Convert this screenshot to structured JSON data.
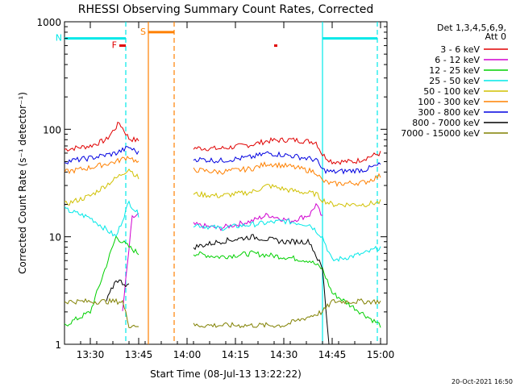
{
  "chart_data": {
    "type": "line",
    "title": "RHESSI Observing Summary Count Rates, Corrected",
    "xlabel": "Start Time (08-Jul-13 13:22:22)",
    "ylabel": "Corrected Count Rate (s⁻¹ detector⁻¹)",
    "ylog": true,
    "ylim": [
      1,
      1000
    ],
    "xlim": [
      "13:22",
      "15:02"
    ],
    "x_ticks": [
      "13:30",
      "13:45",
      "14:00",
      "14:15",
      "14:30",
      "14:45",
      "15:00"
    ],
    "y_ticks": [
      "1",
      "10",
      "100",
      "1000"
    ],
    "legend_placement": "right",
    "legend_header": [
      "Det 1,3,4,5,6,9,",
      "Att 0"
    ],
    "series": [
      {
        "name": "3 - 6 keV",
        "color": "#e00000",
        "x": [
          "13:22",
          "13:30",
          "13:35",
          "13:39",
          "13:42",
          "13:45",
          "13:52",
          "14:02",
          "14:10",
          "14:20",
          "14:25",
          "14:32",
          "14:40",
          "14:42",
          "14:45",
          "14:52",
          "15:00"
        ],
        "values": [
          65,
          70,
          80,
          115,
          82,
          78,
          72,
          67,
          66,
          72,
          78,
          80,
          76,
          58,
          50,
          50,
          60
        ]
      },
      {
        "name": "6 - 12 keV",
        "color": "#d000d0",
        "x": [
          "13:22",
          "13:40",
          "13:43",
          "13:45",
          "13:52",
          "14:02",
          "14:10",
          "14:20",
          "14:25",
          "14:32",
          "14:38",
          "14:40",
          "14:42"
        ],
        "values": [
          null,
          2,
          15,
          16,
          14,
          13,
          12,
          14,
          16,
          14,
          16,
          20,
          15
        ]
      },
      {
        "name": "12 - 25 keV",
        "color": "#00d000",
        "x": [
          "13:22",
          "13:30",
          "13:38",
          "13:42",
          "13:45",
          "13:52",
          "14:02",
          "14:10",
          "14:20",
          "14:30",
          "14:38",
          "14:42",
          "14:45",
          "15:00"
        ],
        "values": [
          1.5,
          2,
          10,
          8,
          7,
          7,
          7,
          6.5,
          7,
          6.5,
          6,
          5,
          3,
          1.5
        ]
      },
      {
        "name": "25 - 50 keV",
        "color": "#00e8e8",
        "x": [
          "13:22",
          "13:30",
          "13:38",
          "13:42",
          "13:45",
          "13:52",
          "14:02",
          "14:10",
          "14:20",
          "14:30",
          "14:38",
          "14:42",
          "14:45",
          "14:55",
          "15:00"
        ],
        "values": [
          18,
          15,
          10,
          21,
          16,
          13,
          13,
          12,
          13,
          14,
          13,
          10,
          6,
          7,
          8
        ]
      },
      {
        "name": "50 - 100 keV",
        "color": "#d0c000",
        "x": [
          "13:22",
          "13:30",
          "13:38",
          "13:42",
          "13:45",
          "13:52",
          "14:02",
          "14:10",
          "14:20",
          "14:25",
          "14:32",
          "14:40",
          "14:42",
          "14:45",
          "14:55",
          "15:00"
        ],
        "values": [
          20,
          24,
          35,
          43,
          35,
          33,
          25,
          24,
          26,
          30,
          27,
          25,
          22,
          20,
          20,
          21
        ]
      },
      {
        "name": "100 - 300 keV",
        "color": "#ff8000",
        "x": [
          "13:22",
          "13:30",
          "13:38",
          "13:42",
          "13:45",
          "13:52",
          "14:02",
          "14:10",
          "14:20",
          "14:25",
          "14:32",
          "14:40",
          "14:42",
          "14:45",
          "14:55",
          "15:00"
        ],
        "values": [
          40,
          44,
          50,
          56,
          48,
          46,
          42,
          40,
          43,
          48,
          45,
          40,
          33,
          31,
          32,
          37
        ]
      },
      {
        "name": "300 - 800 keV",
        "color": "#0000e0",
        "x": [
          "13:22",
          "13:30",
          "13:38",
          "13:42",
          "13:45",
          "13:52",
          "14:02",
          "14:10",
          "14:20",
          "14:25",
          "14:32",
          "14:40",
          "14:42",
          "14:45",
          "14:55",
          "15:00"
        ],
        "values": [
          50,
          54,
          60,
          68,
          60,
          57,
          53,
          51,
          55,
          60,
          57,
          52,
          42,
          40,
          42,
          47
        ]
      },
      {
        "name": "800 - 7000 keV",
        "color": "#000000",
        "x": [
          "13:22",
          "13:35",
          "13:38",
          "13:42",
          "14:02",
          "14:10",
          "14:20",
          "14:30",
          "14:38",
          "14:42",
          "14:44"
        ],
        "values": [
          null,
          2.5,
          4,
          3.5,
          8,
          9,
          10,
          9,
          9,
          5,
          1
        ]
      },
      {
        "name": "7000 - 15000 keV",
        "color": "#808000",
        "x": [
          "13:22",
          "13:30",
          "13:40",
          "13:42",
          "13:45",
          "14:02",
          "14:15",
          "14:30",
          "14:42",
          "14:45",
          "15:00"
        ],
        "values": [
          2.5,
          2.5,
          2.5,
          1.5,
          1.5,
          1.5,
          1.5,
          1.5,
          2,
          2.5,
          2.5
        ]
      }
    ],
    "annotations": [
      {
        "label": "F",
        "color": "#e00000",
        "x_start": "13:39",
        "x_end": "13:41",
        "level": 600
      },
      {
        "label": "N",
        "color": "#00e8e8",
        "x_start": "13:22",
        "x_end": "13:41",
        "level": 700
      },
      {
        "label": "S",
        "color": "#ff8000",
        "x_start": "13:48",
        "x_end": "13:56",
        "level": 800
      },
      {
        "label": "",
        "color": "#00e8e8",
        "x_start": "14:42",
        "x_end": "14:59",
        "level": 700
      },
      {
        "label": "",
        "color": "#e00000",
        "x_start": "14:27",
        "x_end": "14:28",
        "level": 600
      }
    ],
    "vertical_lines": [
      {
        "x": "13:41",
        "color": "#00e8e8",
        "style": "dashed"
      },
      {
        "x": "13:48",
        "color": "#ff8000",
        "style": "solid"
      },
      {
        "x": "13:56",
        "color": "#ff8000",
        "style": "dashed"
      },
      {
        "x": "14:42",
        "color": "#00e8e8",
        "style": "solid"
      },
      {
        "x": "14:59",
        "color": "#00e8e8",
        "style": "dashed"
      }
    ],
    "data_gap": [
      "13:48",
      "14:02"
    ]
  },
  "footer_date": "20-Oct-2021 16:50"
}
